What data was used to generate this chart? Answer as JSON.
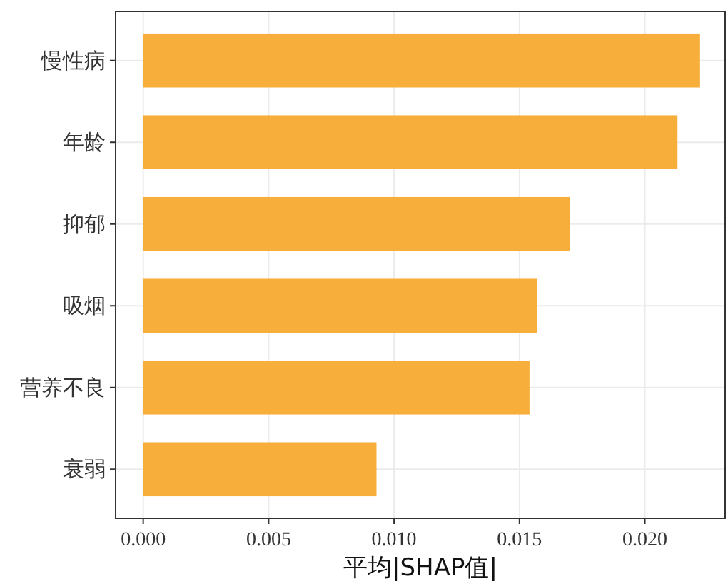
{
  "chart_data": {
    "type": "bar",
    "orientation": "horizontal",
    "xlabel": "平均|SHAP值|",
    "categories": [
      "慢性病",
      "年龄",
      "抑郁",
      "吸烟",
      "营养不良",
      "衰弱"
    ],
    "values": [
      0.0222,
      0.0213,
      0.017,
      0.0157,
      0.0154,
      0.0093
    ],
    "color": "#f8ae3a",
    "xlim": [
      -0.0011,
      0.0232
    ],
    "xticks": [
      {
        "value": 0,
        "label": "0.000"
      },
      {
        "value": 0.005,
        "label": "0.005"
      },
      {
        "value": 0.01,
        "label": "0.010"
      },
      {
        "value": 0.015,
        "label": "0.015"
      },
      {
        "value": 0.02,
        "label": "0.020"
      }
    ],
    "grid": true
  }
}
